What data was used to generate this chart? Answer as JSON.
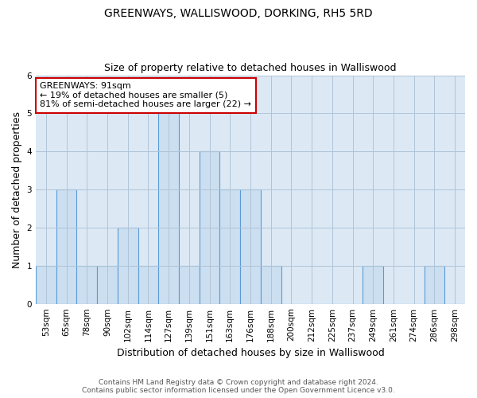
{
  "title": "GREENWAYS, WALLISWOOD, DORKING, RH5 5RD",
  "subtitle": "Size of property relative to detached houses in Walliswood",
  "xlabel": "Distribution of detached houses by size in Walliswood",
  "ylabel": "Number of detached properties",
  "footnote": "Contains HM Land Registry data © Crown copyright and database right 2024.\nContains public sector information licensed under the Open Government Licence v3.0.",
  "annotation_line1": "GREENWAYS: 91sqm",
  "annotation_line2": "← 19% of detached houses are smaller (5)",
  "annotation_line3": "81% of semi-detached houses are larger (22) →",
  "categories": [
    "53sqm",
    "65sqm",
    "78sqm",
    "90sqm",
    "102sqm",
    "114sqm",
    "127sqm",
    "139sqm",
    "151sqm",
    "163sqm",
    "176sqm",
    "188sqm",
    "200sqm",
    "212sqm",
    "225sqm",
    "237sqm",
    "249sqm",
    "261sqm",
    "274sqm",
    "286sqm",
    "298sqm"
  ],
  "values": [
    1,
    3,
    1,
    1,
    2,
    1,
    5,
    1,
    4,
    3,
    3,
    1,
    0,
    0,
    0,
    0,
    1,
    0,
    0,
    1,
    0
  ],
  "bar_color": "#ccdff0",
  "bar_edge_color": "#5b9bd5",
  "annotation_box_edge": "#cc0000",
  "annotation_box_face": "#ffffff",
  "plot_bg_color": "#dce9f5",
  "ylim": [
    0,
    6
  ],
  "yticks": [
    0,
    1,
    2,
    3,
    4,
    5,
    6
  ],
  "background_color": "#ffffff",
  "grid_color": "#b0c4d8",
  "title_fontsize": 10,
  "subtitle_fontsize": 9,
  "axis_label_fontsize": 9,
  "tick_fontsize": 7.5,
  "annotation_fontsize": 8,
  "footnote_fontsize": 6.5
}
